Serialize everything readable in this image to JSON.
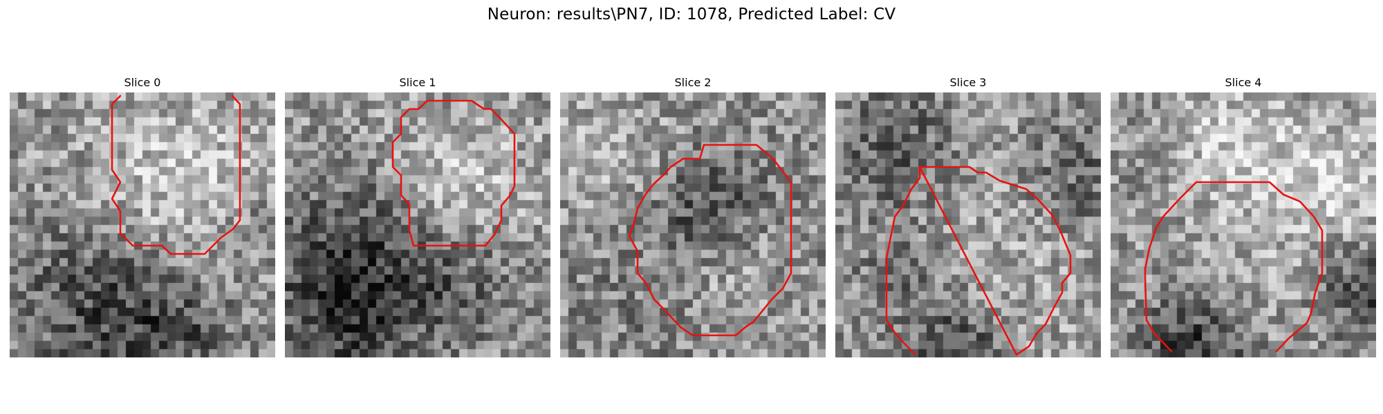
{
  "figure": {
    "title": "Neuron: results\\PN7, ID: 1078, Predicted Label: CV",
    "contour_color": "#e8120f",
    "colormap": "gray"
  },
  "slices": [
    {
      "title": "Slice 0"
    },
    {
      "title": "Slice 1"
    },
    {
      "title": "Slice 2"
    },
    {
      "title": "Slice 3"
    },
    {
      "title": "Slice 4"
    }
  ]
}
